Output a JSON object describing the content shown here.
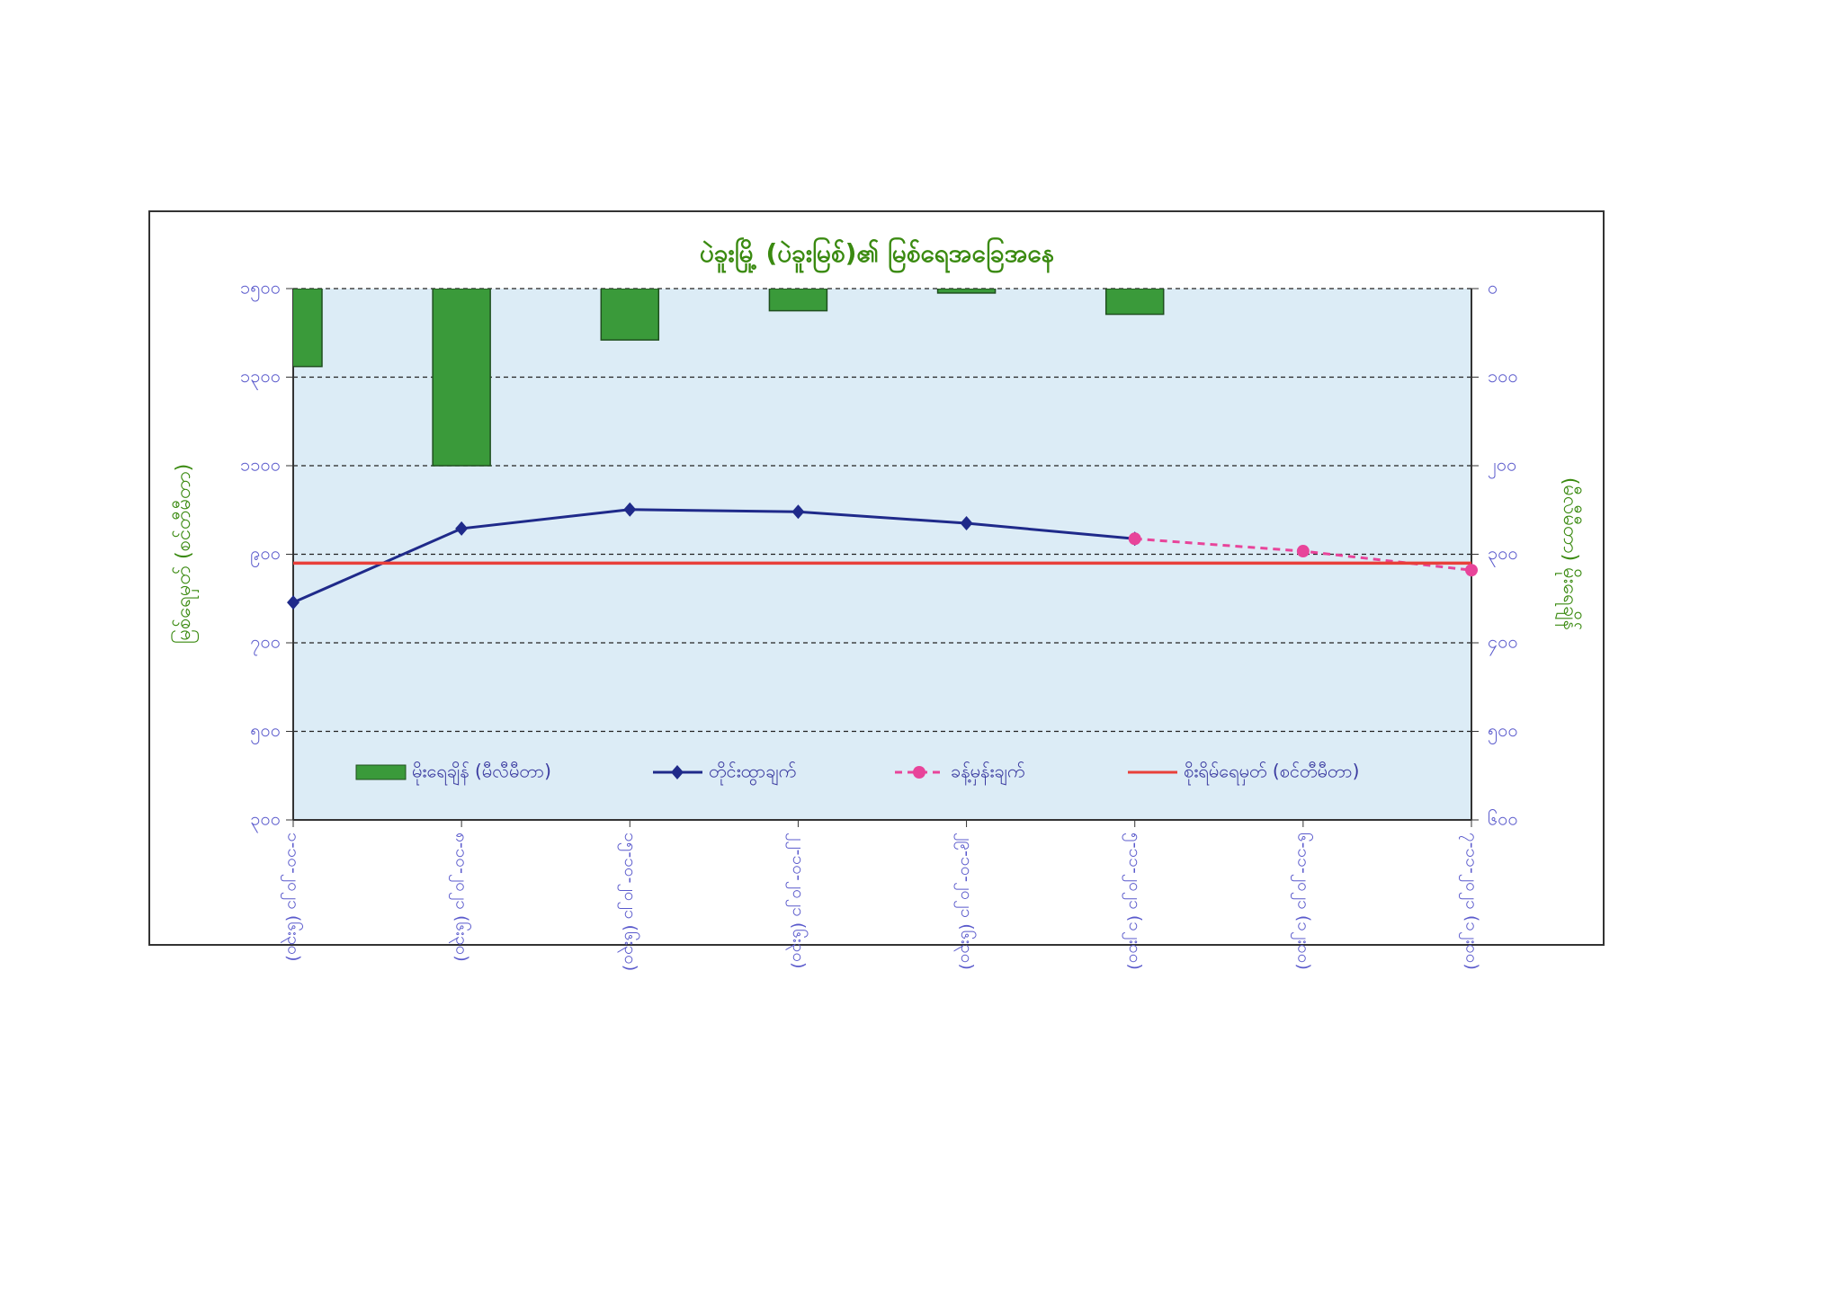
{
  "chart_data": {
    "type": "combo",
    "title": "ပဲခူးမြို့ (ပဲခူးမြစ်)၏ မြစ်ရေအခြေအနေ",
    "y_label": "မြစ်ရေမှတ် (စင်တီမီတာ)",
    "y2_label": "(မီလီမီတာ) မိုးရေချိန်",
    "categories": [
      "၁-၁၀-၂၀၂၁ (၆း၃၀)",
      "၈-၁၀-၂၀၂၁ (၆း၃၀)",
      "၁၅-၁၀-၂၀၂၁ (၆း၃၀)",
      "၂၂-၁၀-၂၀၂၁ (၆း၃၀)",
      "၂၉-၁၀-၂၀၂၁ (၆း၃၀)",
      "၅-၁၁-၂၀၂၁ (၁၂း၀၀)",
      "၆-၁၁-၂၀၂၁ (၁၂း၀၀)",
      "၇-၁၁-၂၀၂၁ (၁၂း၀၀)"
    ],
    "ylim": [
      300,
      1500
    ],
    "yticks": [
      {
        "value": 300,
        "label": "၃၀၀"
      },
      {
        "value": 500,
        "label": "၅၀၀"
      },
      {
        "value": 700,
        "label": "၇၀၀"
      },
      {
        "value": 900,
        "label": "၉၀၀"
      },
      {
        "value": 1100,
        "label": "၁၁၀၀"
      },
      {
        "value": 1300,
        "label": "၁၃၀၀"
      },
      {
        "value": 1500,
        "label": "၁၅၀၀"
      }
    ],
    "y2lim": [
      0,
      600
    ],
    "y2_inverted": true,
    "y2ticks": [
      {
        "value": 0,
        "label": "၀"
      },
      {
        "value": 100,
        "label": "၁၀၀"
      },
      {
        "value": 200,
        "label": "၂၀၀"
      },
      {
        "value": 300,
        "label": "၃၀၀"
      },
      {
        "value": 400,
        "label": "၄၀၀"
      },
      {
        "value": 500,
        "label": "၅၀၀"
      },
      {
        "value": 600,
        "label": "၆၀၀"
      }
    ],
    "grid": true,
    "series": [
      {
        "name": "မိုးရေချိန် (မီလီမီတာ)",
        "type": "bar",
        "axis": "y2",
        "color": "#3a9a3a",
        "values": [
          88,
          200,
          58,
          25,
          5,
          29,
          null,
          null
        ]
      },
      {
        "name": "တိုင်းထွာချက်",
        "type": "line",
        "color": "#1f2a8a",
        "marker": "diamond",
        "values": [
          791,
          958,
          1001,
          996,
          970,
          935,
          null,
          null
        ]
      },
      {
        "name": "ခန့်မှန်းချက်",
        "type": "line",
        "dashed": true,
        "color": "#e8449a",
        "marker": "circle",
        "values": [
          null,
          null,
          null,
          null,
          null,
          935,
          907,
          864
        ]
      },
      {
        "name": "စိုးရိမ်ရေမှတ် (စင်တီမီတာ)",
        "type": "line",
        "color": "#e8403a",
        "values": [
          880,
          880,
          880,
          880,
          880,
          880,
          880,
          880
        ]
      }
    ]
  }
}
